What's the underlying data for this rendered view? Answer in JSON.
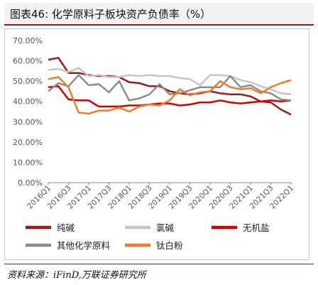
{
  "header": {
    "title": "图表46:  化学原料子板块资产负债率（%）"
  },
  "source": "资料来源：iFinD,万联证券研究所",
  "colors": {
    "纯碱": "#9b1b1b",
    "氯碱": "#c6c6c6",
    "无机盐": "#d40000",
    "其他化学原料": "#8c8c8c",
    "钛白粉": "#f07b2a"
  },
  "chart_data": {
    "type": "line",
    "ylim": [
      0,
      70
    ],
    "yticks": [
      "0.00%",
      "10.00%",
      "20.00%",
      "30.00%",
      "40.00%",
      "50.00%",
      "60.00%",
      "70.00%"
    ],
    "xtick_labels": [
      "2016Q1",
      "2016Q3",
      "2017Q1",
      "2017Q3",
      "2018Q1",
      "2018Q3",
      "2019Q1",
      "2019Q3",
      "2020Q1",
      "2020Q3",
      "2021Q1",
      "2021Q3",
      "2022Q1"
    ],
    "categories": [
      "2016Q1",
      "2016Q2",
      "2016Q3",
      "2016Q4",
      "2017Q1",
      "2017Q2",
      "2017Q3",
      "2017Q4",
      "2018Q1",
      "2018Q2",
      "2018Q3",
      "2018Q4",
      "2019Q1",
      "2019Q2",
      "2019Q3",
      "2019Q4",
      "2020Q1",
      "2020Q2",
      "2020Q3",
      "2020Q4",
      "2021Q1",
      "2021Q2",
      "2021Q3",
      "2021Q4",
      "2022Q1"
    ],
    "legend_position": "bottom",
    "series": [
      {
        "name": "纯碱",
        "values": [
          60.5,
          61.5,
          54.0,
          54.0,
          53.0,
          52.5,
          52.5,
          52.0,
          49.5,
          49.0,
          47.5,
          47.5,
          45.0,
          44.0,
          43.5,
          44.0,
          45.0,
          44.0,
          43.5,
          43.5,
          42.5,
          40.0,
          39.5,
          36.0,
          33.5
        ]
      },
      {
        "name": "氯碱",
        "values": [
          55.5,
          56.0,
          54.5,
          56.5,
          52.5,
          53.0,
          52.0,
          52.0,
          53.0,
          52.5,
          53.0,
          52.5,
          52.5,
          51.5,
          51.0,
          48.0,
          53.0,
          53.0,
          52.5,
          50.5,
          49.5,
          47.5,
          46.0,
          44.0,
          43.5
        ]
      },
      {
        "name": "无机盐",
        "values": [
          47.0,
          47.5,
          41.0,
          40.5,
          40.5,
          37.5,
          37.5,
          37.5,
          38.0,
          38.0,
          38.5,
          39.0,
          39.0,
          38.0,
          38.5,
          39.5,
          39.5,
          40.5,
          39.5,
          39.0,
          39.5,
          40.0,
          40.5,
          40.0,
          40.5
        ]
      },
      {
        "name": "其他化学原料",
        "values": [
          45.0,
          49.0,
          47.5,
          53.0,
          48.0,
          48.5,
          44.5,
          50.0,
          40.5,
          41.5,
          43.5,
          48.5,
          43.5,
          44.0,
          45.5,
          47.0,
          47.0,
          47.0,
          52.5,
          47.0,
          48.0,
          45.0,
          44.0,
          41.0,
          40.5
        ]
      },
      {
        "name": "钛白粉",
        "values": [
          51.0,
          52.0,
          47.0,
          34.5,
          34.0,
          35.5,
          35.5,
          37.0,
          35.0,
          37.5,
          38.5,
          38.0,
          40.5,
          46.0,
          43.0,
          44.5,
          45.0,
          50.0,
          47.0,
          46.0,
          46.5,
          44.0,
          47.0,
          49.0,
          50.5
        ]
      }
    ]
  }
}
